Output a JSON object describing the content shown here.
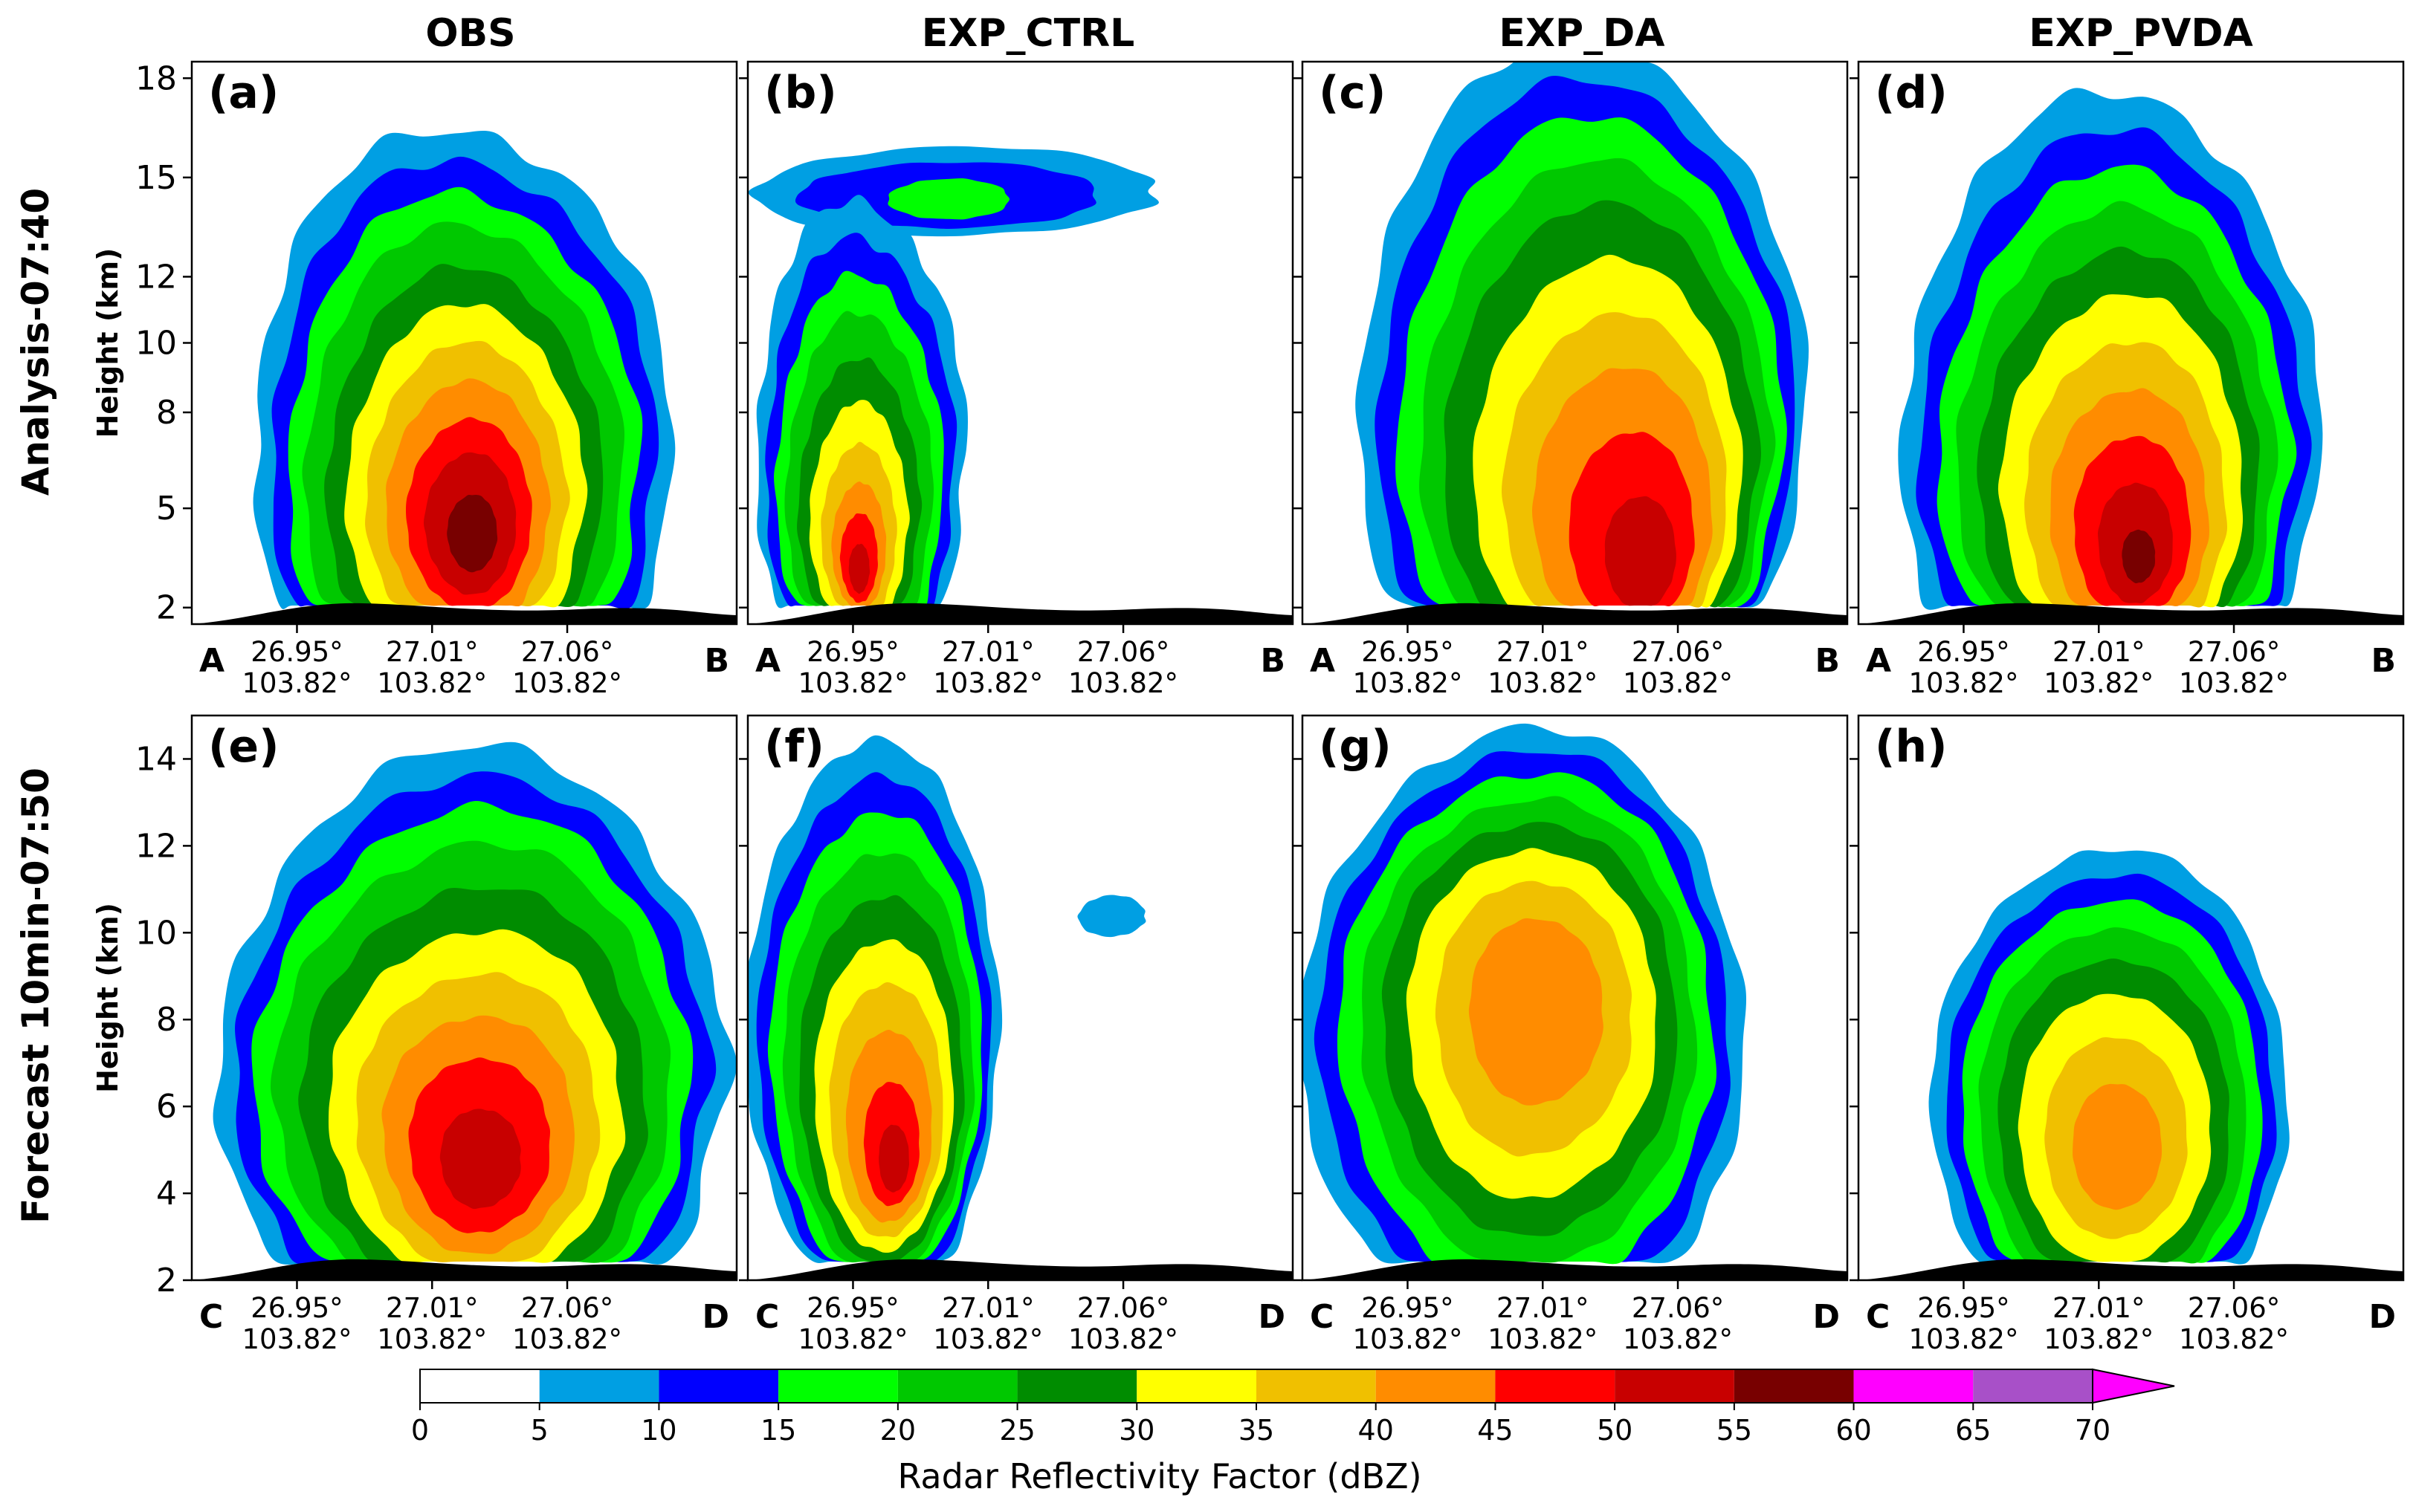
{
  "figure": {
    "column_titles": [
      "OBS",
      "EXP_CTRL",
      "EXP_DA",
      "EXP_PVDA"
    ],
    "row_titles": [
      "Analysis-07:40",
      "Forecast 10min-07:50"
    ],
    "ylabel": "Height (km)"
  },
  "colors": {
    "levels": [
      "#ffffff",
      "#009fe3",
      "#0000ff",
      "#00ff00",
      "#00c800",
      "#008c00",
      "#ffff00",
      "#f0c000",
      "#ff8c00",
      "#ff0000",
      "#c80000",
      "#780000",
      "#ff00ff",
      "#a850c8"
    ],
    "terrain": "#000000",
    "extend": "#ff00ff"
  },
  "chart_data": [
    {
      "type": "contour-cross-section",
      "panels": [
        {
          "label": "(a)",
          "experiment": "OBS"
        },
        {
          "label": "(b)",
          "experiment": "EXP_CTRL"
        },
        {
          "label": "(c)",
          "experiment": "EXP_DA"
        },
        {
          "label": "(d)",
          "experiment": "EXP_PVDA"
        }
      ],
      "time": "Analysis-07:40",
      "ylabel": "Height (km)",
      "ylim": [
        1.5,
        18.5
      ],
      "yticks": [
        "2",
        "5",
        "8",
        "10",
        "12",
        "15",
        "18"
      ],
      "ytick_values": [
        2,
        5,
        7.9,
        10,
        12,
        15,
        18
      ],
      "x_start": "A",
      "x_end": "B",
      "xticks": [
        {
          "lat": "26.95°",
          "lon": "103.82°"
        },
        {
          "lat": "27.01°",
          "lon": "103.82°"
        },
        {
          "lat": "27.06°",
          "lon": "103.82°"
        }
      ]
    },
    {
      "type": "contour-cross-section",
      "panels": [
        {
          "label": "(e)",
          "experiment": "OBS"
        },
        {
          "label": "(f)",
          "experiment": "EXP_CTRL"
        },
        {
          "label": "(g)",
          "experiment": "EXP_DA"
        },
        {
          "label": "(h)",
          "experiment": "EXP_PVDA"
        }
      ],
      "time": "Forecast 10min-07:50",
      "ylabel": "Height (km)",
      "ylim": [
        2,
        15
      ],
      "yticks": [
        "2",
        "4",
        "6",
        "8",
        "10",
        "12",
        "14"
      ],
      "ytick_values": [
        2,
        4,
        6,
        8,
        10,
        12,
        14
      ],
      "x_start": "C",
      "x_end": "D",
      "xticks": [
        {
          "lat": "26.95°",
          "lon": "103.82°"
        },
        {
          "lat": "27.01°",
          "lon": "103.82°"
        },
        {
          "lat": "27.06°",
          "lon": "103.82°"
        }
      ]
    }
  ],
  "colorbar": {
    "label": "Radar Reflectivity Factor (dBZ)",
    "ticks": [
      "0",
      "5",
      "10",
      "15",
      "20",
      "25",
      "30",
      "35",
      "40",
      "45",
      "50",
      "55",
      "60",
      "65",
      "70"
    ],
    "bounds": [
      0,
      5,
      10,
      15,
      20,
      25,
      30,
      35,
      40,
      45,
      50,
      55,
      60,
      65,
      70
    ],
    "extend": "max"
  }
}
